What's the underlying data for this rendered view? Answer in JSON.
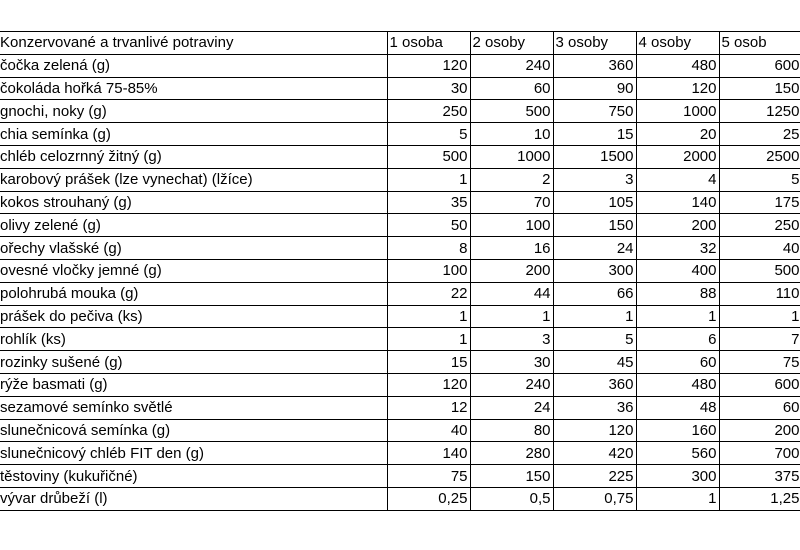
{
  "table": {
    "header": [
      "Konzervované a trvanlivé potraviny",
      "1 osoba",
      "2 osoby",
      "3 osoby",
      "4 osoby",
      "5 osob"
    ],
    "rows": [
      [
        "čočka zelená (g)",
        "120",
        "240",
        "360",
        "480",
        "600"
      ],
      [
        "čokoláda hořká 75-85%",
        "30",
        "60",
        "90",
        "120",
        "150"
      ],
      [
        "gnochi, noky (g)",
        "250",
        "500",
        "750",
        "1000",
        "1250"
      ],
      [
        "chia semínka (g)",
        "5",
        "10",
        "15",
        "20",
        "25"
      ],
      [
        "chléb celozrnný žitný (g)",
        "500",
        "1000",
        "1500",
        "2000",
        "2500"
      ],
      [
        "karobový prášek (lze vynechat) (lžíce)",
        "1",
        "2",
        "3",
        "4",
        "5"
      ],
      [
        "kokos strouhaný (g)",
        "35",
        "70",
        "105",
        "140",
        "175"
      ],
      [
        "olivy zelené (g)",
        "50",
        "100",
        "150",
        "200",
        "250"
      ],
      [
        "ořechy vlašské (g)",
        "8",
        "16",
        "24",
        "32",
        "40"
      ],
      [
        "ovesné vločky jemné (g)",
        "100",
        "200",
        "300",
        "400",
        "500"
      ],
      [
        "polohrubá mouka (g)",
        "22",
        "44",
        "66",
        "88",
        "110"
      ],
      [
        "prášek do pečiva (ks)",
        "1",
        "1",
        "1",
        "1",
        "1"
      ],
      [
        "rohlík (ks)",
        "1",
        "3",
        "5",
        "6",
        "7"
      ],
      [
        "rozinky sušené (g)",
        "15",
        "30",
        "45",
        "60",
        "75"
      ],
      [
        "rýže basmati (g)",
        "120",
        "240",
        "360",
        "480",
        "600"
      ],
      [
        "sezamové semínko světlé",
        "12",
        "24",
        "36",
        "48",
        "60"
      ],
      [
        "slunečnicová semínka (g)",
        "40",
        "80",
        "120",
        "160",
        "200"
      ],
      [
        "slunečnicový chléb FIT den (g)",
        "140",
        "280",
        "420",
        "560",
        "700"
      ],
      [
        "těstoviny (kukuřičné)",
        "75",
        "150",
        "225",
        "300",
        "375"
      ],
      [
        "vývar drůbeží (l)",
        "0,25",
        "0,5",
        "0,75",
        "1",
        "1,25"
      ]
    ]
  }
}
